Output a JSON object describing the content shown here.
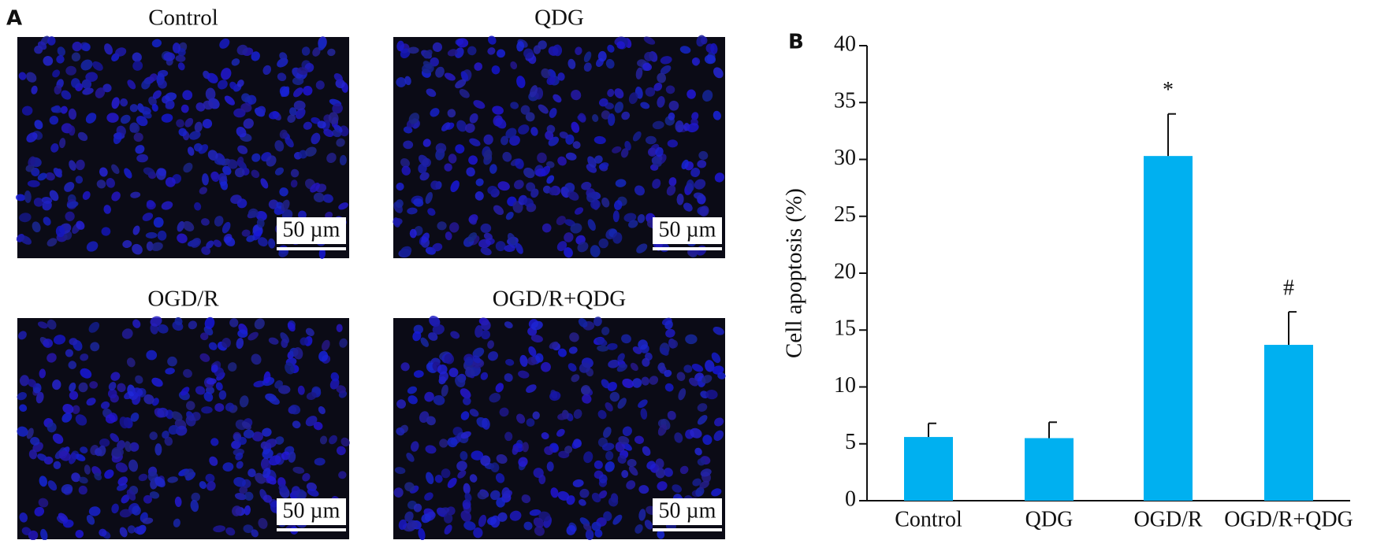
{
  "panel_a": {
    "label": "A",
    "images": [
      {
        "title": "Control",
        "scale_bar": "50 µm"
      },
      {
        "title": "QDG",
        "scale_bar": "50 µm"
      },
      {
        "title": "OGD/R",
        "scale_bar": "50 µm"
      },
      {
        "title": "OGD/R+QDG",
        "scale_bar": "50 µm"
      }
    ]
  },
  "panel_b_label": "B",
  "chart_data": {
    "type": "bar",
    "y_label": "Cell apoptosis (%)",
    "categories": [
      "Control",
      "QDG",
      "OGD/R",
      "OGD/R+QDG"
    ],
    "values": [
      5.6,
      5.5,
      30.3,
      13.7
    ],
    "errors": [
      1.2,
      1.4,
      3.7,
      2.9
    ],
    "annotations": [
      null,
      null,
      "*",
      "#"
    ],
    "color": "#00b0f0",
    "ylim": [
      0,
      40
    ],
    "yticks": [
      0,
      5,
      10,
      15,
      20,
      25,
      30,
      35,
      40
    ]
  }
}
